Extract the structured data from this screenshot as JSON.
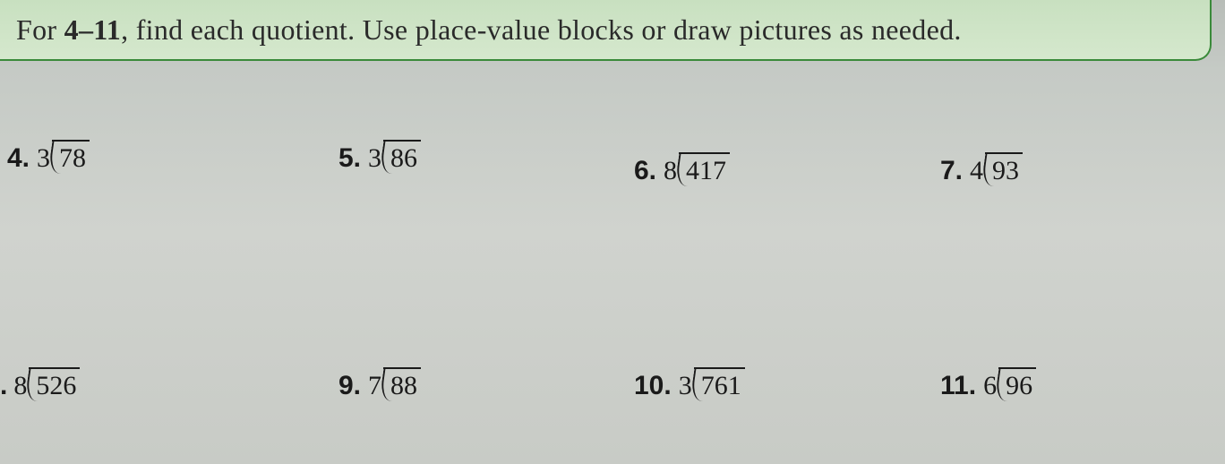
{
  "instruction": {
    "prefix": "For ",
    "range": "4–11",
    "rest": ", find each quotient. Use place-value blocks or draw pictures as needed."
  },
  "box": {
    "border_color": "#3a8a3a",
    "background_top": "#c8e0c0",
    "background_bottom": "#d5e8cd"
  },
  "page": {
    "background": "#cdd1cb",
    "text_color": "#1a1a1a",
    "font_size_instruction": 32,
    "font_size_problem": 30
  },
  "problems": [
    {
      "id": "4",
      "num_label": "4.",
      "divisor": "3",
      "dividend": "78"
    },
    {
      "id": "5",
      "num_label": "5.",
      "divisor": "3",
      "dividend": "86"
    },
    {
      "id": "6",
      "num_label": "6.",
      "divisor": "8",
      "dividend": "417"
    },
    {
      "id": "7",
      "num_label": "7.",
      "divisor": "4",
      "dividend": "93"
    },
    {
      "id": "8",
      "num_label": ".",
      "divisor": "8",
      "dividend": "526"
    },
    {
      "id": "9",
      "num_label": "9.",
      "divisor": "7",
      "dividend": "88"
    },
    {
      "id": "10",
      "num_label": "10.",
      "divisor": "3",
      "dividend": "761"
    },
    {
      "id": "11",
      "num_label": "11.",
      "divisor": "6",
      "dividend": "96"
    }
  ]
}
